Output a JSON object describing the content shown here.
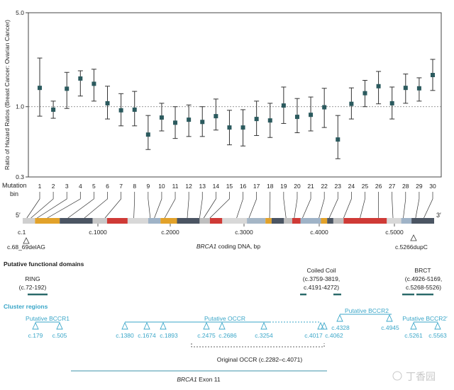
{
  "chart_data": {
    "type": "scatter",
    "ylabel": "Ratio of Hazard Ratios (Breast Cancer: Ovarian Cancer)",
    "yscale": "log",
    "ylim": [
      0.3,
      5.0
    ],
    "yticks": [
      "5.0",
      "1.0",
      "0.3"
    ],
    "reference_line": 1.0,
    "mutation_label": "Mutation",
    "bin_label": "bin",
    "x": [
      1,
      2,
      3,
      4,
      5,
      6,
      7,
      8,
      9,
      10,
      11,
      12,
      13,
      14,
      15,
      16,
      17,
      18,
      19,
      20,
      21,
      22,
      23,
      24,
      25,
      26,
      27,
      28,
      29,
      30
    ],
    "values": [
      1.38,
      0.95,
      1.36,
      1.62,
      1.48,
      1.06,
      0.94,
      0.95,
      0.62,
      0.83,
      0.76,
      0.8,
      0.77,
      0.85,
      0.7,
      0.7,
      0.81,
      0.79,
      1.02,
      0.84,
      0.87,
      0.99,
      0.57,
      1.05,
      1.26,
      1.42,
      1.06,
      1.38,
      1.37,
      1.72
    ],
    "ci_lower": [
      0.85,
      0.82,
      0.97,
      1.2,
      1.1,
      0.81,
      0.72,
      0.72,
      0.48,
      0.66,
      0.58,
      0.6,
      0.6,
      0.67,
      0.52,
      0.51,
      0.61,
      0.59,
      0.75,
      0.64,
      0.66,
      0.7,
      0.41,
      0.81,
      1.0,
      1.05,
      0.81,
      1.06,
      1.1,
      1.32
    ],
    "ci_upper": [
      2.3,
      1.1,
      1.8,
      1.85,
      1.9,
      1.42,
      1.25,
      1.3,
      0.86,
      1.06,
      1.0,
      1.03,
      1.0,
      1.14,
      0.94,
      0.95,
      1.1,
      1.06,
      1.4,
      1.15,
      1.18,
      1.37,
      0.86,
      1.38,
      1.57,
      1.83,
      1.4,
      1.75,
      1.64,
      2.25
    ],
    "marker_color": "#2b5a5e"
  },
  "gene": {
    "five_prime": "5′",
    "three_prime": "3′",
    "start_label": "c.1",
    "start_mutation": "c.68_69delAG",
    "end_mutation": "c.5266dupC",
    "scale_ticks": [
      "c.1000",
      "c.2000",
      "c.3000",
      "c.4000",
      "c.5000"
    ],
    "axis_title_italic": "BRCA1",
    "axis_title_rest": " coding DNA, bp"
  },
  "domains": {
    "title": "Putative functional domains",
    "ring_name": "RING",
    "ring_range": "(c.72-192)",
    "coil_name": "Coiled Coil",
    "coil_range1": "(c.3759-3819,",
    "coil_range2": "c.4191-4272)",
    "brct_name": "BRCT",
    "brct_range1": "(c.4926-5169,",
    "brct_range2": "c.5268-5526)"
  },
  "clusters": {
    "title": "Cluster regions",
    "bccr1": "Putative BCCR1",
    "bccr1_points": [
      "c.179",
      "c.505"
    ],
    "occr": "Putative OCCR",
    "occr_points": [
      "c.1380",
      "c.1674",
      "c.1893",
      "c.2475",
      "c.2686",
      "c.3254",
      "c.4017",
      "c.4062"
    ],
    "bccr2": "Putative BCCR2",
    "bccr2_points": [
      "c.4328",
      "c.4945"
    ],
    "bccr2p": "Putative BCCR2′",
    "bccr2p_points": [
      "c.5261",
      "c.5563"
    ],
    "original_occr": "Original OCCR  (c.2282–c.4071)",
    "exon_italic": "BRCA1",
    "exon_rest": " Exon 11"
  },
  "watermark": "丁香园"
}
